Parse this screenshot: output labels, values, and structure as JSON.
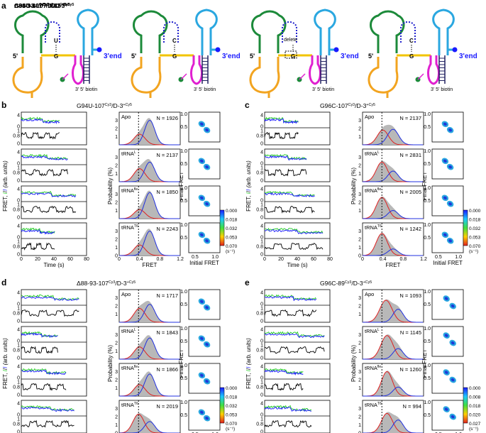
{
  "figure": {
    "panel_a": {
      "letter": "a",
      "constructs": [
        {
          "title_main": "G94U-107",
          "title_sup1": "Cy3",
          "title_mid": "/D-3",
          "title_sup2": "+Cy5",
          "pair_top": "U",
          "pair_bottom": "G",
          "end_label": "3'end",
          "five_prime": "5'",
          "biotin": "3' 5' biotin",
          "note": ""
        },
        {
          "title_main": "G96C-107",
          "title_sup1": "Cy3",
          "title_mid": "/D-3",
          "title_sup2": "+Cy5",
          "pair_top": "C",
          "pair_bottom": "G",
          "end_label": "3'end",
          "five_prime": "5'",
          "biotin": "3' 5' biotin",
          "note": ""
        },
        {
          "title_main": "Δ88-93-107",
          "title_sup1": "Cy3",
          "title_mid": "/D-3",
          "title_sup2": "+Cy5",
          "pair_top": "",
          "pair_bottom": "G",
          "end_label": "3'end",
          "five_prime": "5'",
          "biotin": "3' 5' biotin",
          "note": "delete"
        },
        {
          "title_main": "G96C-89",
          "title_sup1": "Cy3",
          "title_mid": "/D-3",
          "title_sup2": "+Cy5",
          "pair_top": "C",
          "pair_bottom": "G",
          "end_label": "3'end",
          "five_prime": "5'",
          "biotin": "3' 5' biotin",
          "note": ""
        }
      ]
    },
    "panels": [
      {
        "letter": "b",
        "title_main": "G94U-107",
        "title_sup1": "Cy3",
        "title_mid": "/D-3",
        "title_sup2": "+Cy5",
        "rows": [
          {
            "cond": "Apo",
            "cond_sup": "",
            "n_label": "N = 1926"
          },
          {
            "cond": "tRNA",
            "cond_sup": "L",
            "n_label": "N = 2137"
          },
          {
            "cond": "tRNA",
            "cond_sup": "fle",
            "n_label": "N = 1850"
          },
          {
            "cond": "tRNA",
            "cond_sup": "T6",
            "n_label": "N = 2243"
          }
        ]
      },
      {
        "letter": "c",
        "title_main": "G96C-107",
        "title_sup1": "Cy3",
        "title_mid": "/D-3",
        "title_sup2": "+Cy5",
        "rows": [
          {
            "cond": "Apo",
            "cond_sup": "",
            "n_label": "N = 2137"
          },
          {
            "cond": "tRNA",
            "cond_sup": "L",
            "n_label": "N = 2831"
          },
          {
            "cond": "tRNA",
            "cond_sup": "fle",
            "n_label": "N = 2005"
          },
          {
            "cond": "tRNA",
            "cond_sup": "T6",
            "n_label": "N = 1242"
          }
        ]
      },
      {
        "letter": "d",
        "title_main": "Δ88-93-107",
        "title_sup1": "Cy3",
        "title_mid": "/D-3",
        "title_sup2": "+Cy5",
        "rows": [
          {
            "cond": "Apo",
            "cond_sup": "",
            "n_label": "N = 1717"
          },
          {
            "cond": "tRNA",
            "cond_sup": "L",
            "n_label": "N = 1843"
          },
          {
            "cond": "tRNA",
            "cond_sup": "fle",
            "n_label": "N = 1866"
          },
          {
            "cond": "tRNA",
            "cond_sup": "T6",
            "n_label": "N = 2019"
          }
        ]
      },
      {
        "letter": "e",
        "title_main": "G96C-89",
        "title_sup1": "Cy3",
        "title_mid": "/D-3",
        "title_sup2": "+Cy5",
        "rows": [
          {
            "cond": "Apo",
            "cond_sup": "",
            "n_label": "N = 1093"
          },
          {
            "cond": "tRNA",
            "cond_sup": "L",
            "n_label": "N = 1145"
          },
          {
            "cond": "tRNA",
            "cond_sup": "fle",
            "n_label": "N = 1260"
          },
          {
            "cond": "tRNA",
            "cond_sup": "T6",
            "n_label": "N = 994"
          }
        ]
      }
    ],
    "axes": {
      "trace_x_label": "Time (s)",
      "trace_y_label": "FRET, ",
      "trace_y_label_id": "I",
      "trace_y_label_sep": "/",
      "trace_y_label_ia": "I",
      "trace_y_label_units": " (arb. units)",
      "hist_x_label": "FRET",
      "hist_y_label": "Probability (%)",
      "tdp_x_label": "Initial FRET",
      "tdp_y_label": "Final FRET",
      "colorbar_unit": "(s⁻¹)"
    },
    "colorbars": [
      {
        "panel": "b",
        "ticks": [
          "0.000",
          "0.018",
          "0.032",
          "0.053",
          "0.070"
        ]
      },
      {
        "panel": "c",
        "ticks": [
          "0.000",
          "0.018",
          "0.032",
          "0.053",
          "0.070"
        ]
      },
      {
        "panel": "d",
        "ticks": [
          "0.000",
          "0.018",
          "0.032",
          "0.053",
          "0.070"
        ]
      },
      {
        "panel": "e",
        "ticks": [
          "0.000",
          "0.008",
          "0.018",
          "0.020",
          "0.027"
        ]
      }
    ],
    "colors": {
      "donor": "#22cc22",
      "acceptor": "#1a1aff",
      "fret": "#000000",
      "fit_low": "#e02020",
      "fit_high": "#2030e0",
      "hist_fill": "#b8b8b8"
    }
  },
  "chart_data": [
    {
      "panel": "b",
      "type": "area",
      "title": "G94U-107Cy3/D-3+Cy5",
      "xlabel": "FRET",
      "ylabel": "Probability (%)",
      "xlim": [
        0,
        1.2
      ],
      "ylim": [
        0,
        4
      ],
      "xticks": [
        0,
        0.4,
        0.8,
        1.2
      ],
      "yticks": [
        0,
        1,
        2,
        3
      ],
      "threshold": 0.38,
      "series": [
        {
          "cond": "Apo",
          "N": 1926,
          "low": {
            "mu": 0.4,
            "sigma": 0.11,
            "amp": 1.3
          },
          "high": {
            "mu": 0.6,
            "sigma": 0.1,
            "amp": 3.0
          }
        },
        {
          "cond": "tRNAL",
          "N": 2137,
          "low": {
            "mu": 0.4,
            "sigma": 0.11,
            "amp": 1.6
          },
          "high": {
            "mu": 0.6,
            "sigma": 0.1,
            "amp": 2.4
          }
        },
        {
          "cond": "tRNAfle",
          "N": 1850,
          "low": {
            "mu": 0.4,
            "sigma": 0.11,
            "amp": 1.1
          },
          "high": {
            "mu": 0.6,
            "sigma": 0.1,
            "amp": 3.2
          }
        },
        {
          "cond": "tRNAT6",
          "N": 2243,
          "low": {
            "mu": 0.4,
            "sigma": 0.11,
            "amp": 1.3
          },
          "high": {
            "mu": 0.6,
            "sigma": 0.1,
            "amp": 3.0
          }
        }
      ],
      "tdp": {
        "xlabel": "Initial FRET",
        "ylabel": "Final FRET",
        "xlim": [
          0,
          1
        ],
        "ylim": [
          0,
          1
        ],
        "peaks": [
          [
            0.4,
            0.6
          ],
          [
            0.6,
            0.4
          ]
        ],
        "colorbar": {
          "min": 0.0,
          "max": 0.07,
          "ticks": [
            0.0,
            0.018,
            0.032,
            0.053,
            0.07
          ],
          "unit": "s-1"
        }
      }
    },
    {
      "panel": "c",
      "type": "area",
      "title": "G96C-107Cy3/D-3+Cy5",
      "xlabel": "FRET",
      "ylabel": "Probability (%)",
      "xlim": [
        0,
        1.2
      ],
      "ylim": [
        0,
        4
      ],
      "xticks": [
        0,
        0.4,
        0.8,
        1.2
      ],
      "yticks": [
        0,
        1,
        2,
        3
      ],
      "threshold": 0.38,
      "series": [
        {
          "cond": "Apo",
          "N": 2137,
          "low": {
            "mu": 0.4,
            "sigma": 0.11,
            "amp": 1.8
          },
          "high": {
            "mu": 0.6,
            "sigma": 0.11,
            "amp": 1.9
          }
        },
        {
          "cond": "tRNAL",
          "N": 2831,
          "low": {
            "mu": 0.38,
            "sigma": 0.11,
            "amp": 2.4
          },
          "high": {
            "mu": 0.6,
            "sigma": 0.1,
            "amp": 1.3
          }
        },
        {
          "cond": "tRNAfle",
          "N": 2005,
          "low": {
            "mu": 0.38,
            "sigma": 0.11,
            "amp": 2.6
          },
          "high": {
            "mu": 0.6,
            "sigma": 0.1,
            "amp": 1.0
          }
        },
        {
          "cond": "tRNAT6",
          "N": 1242,
          "low": {
            "mu": 0.38,
            "sigma": 0.11,
            "amp": 2.7
          },
          "high": {
            "mu": 0.6,
            "sigma": 0.1,
            "amp": 0.8
          }
        }
      ],
      "tdp": {
        "xlabel": "Initial FRET",
        "ylabel": "Final FRET",
        "xlim": [
          0,
          1
        ],
        "ylim": [
          0,
          1
        ],
        "peaks": [
          [
            0.4,
            0.6
          ],
          [
            0.6,
            0.4
          ]
        ],
        "colorbar": {
          "min": 0.0,
          "max": 0.07,
          "ticks": [
            0.0,
            0.018,
            0.032,
            0.053,
            0.07
          ],
          "unit": "s-1"
        }
      }
    },
    {
      "panel": "d",
      "type": "area",
      "title": "Δ88-93-107Cy3/D-3+Cy5",
      "xlabel": "FRET",
      "ylabel": "Probability (%)",
      "xlim": [
        0,
        1.2
      ],
      "ylim": [
        0,
        4
      ],
      "xticks": [
        0,
        0.4,
        0.8,
        1.2
      ],
      "yticks": [
        0,
        1,
        2,
        3
      ],
      "threshold": 0.38,
      "series": [
        {
          "cond": "Apo",
          "N": 1717,
          "low": {
            "mu": 0.4,
            "sigma": 0.11,
            "amp": 1.7
          },
          "high": {
            "mu": 0.6,
            "sigma": 0.1,
            "amp": 2.2
          }
        },
        {
          "cond": "tRNAL",
          "N": 1843,
          "low": {
            "mu": 0.4,
            "sigma": 0.11,
            "amp": 1.5
          },
          "high": {
            "mu": 0.6,
            "sigma": 0.1,
            "amp": 2.6
          }
        },
        {
          "cond": "tRNAfle",
          "N": 1866,
          "low": {
            "mu": 0.4,
            "sigma": 0.11,
            "amp": 1.4
          },
          "high": {
            "mu": 0.6,
            "sigma": 0.1,
            "amp": 2.7
          }
        },
        {
          "cond": "tRNAT6",
          "N": 2019,
          "low": {
            "mu": 0.38,
            "sigma": 0.11,
            "amp": 2.3
          },
          "high": {
            "mu": 0.6,
            "sigma": 0.1,
            "amp": 1.4
          }
        }
      ],
      "tdp": {
        "xlabel": "Initial FRET",
        "ylabel": "Final FRET",
        "xlim": [
          0,
          1
        ],
        "ylim": [
          0,
          1
        ],
        "peaks": [
          [
            0.4,
            0.6
          ],
          [
            0.6,
            0.4
          ]
        ],
        "colorbar": {
          "min": 0.0,
          "max": 0.07,
          "ticks": [
            0.0,
            0.018,
            0.032,
            0.053,
            0.07
          ],
          "unit": "s-1"
        }
      }
    },
    {
      "panel": "e",
      "type": "area",
      "title": "G96C-89Cy3/D-3+Cy5",
      "xlabel": "FRET",
      "ylabel": "Probability (%)",
      "xlim": [
        0,
        1.2
      ],
      "ylim": [
        0,
        4
      ],
      "xticks": [
        0,
        0.4,
        0.8,
        1.2
      ],
      "yticks": [
        0,
        1,
        2,
        3
      ],
      "threshold": 0.38,
      "series": [
        {
          "cond": "Apo",
          "N": 1093,
          "low": {
            "mu": 0.46,
            "sigma": 0.12,
            "amp": 2.7
          },
          "high": {
            "mu": 0.7,
            "sigma": 0.1,
            "amp": 1.6
          }
        },
        {
          "cond": "tRNAL",
          "N": 1145,
          "low": {
            "mu": 0.48,
            "sigma": 0.12,
            "amp": 2.9
          },
          "high": {
            "mu": 0.7,
            "sigma": 0.1,
            "amp": 1.3
          }
        },
        {
          "cond": "tRNAfle",
          "N": 1260,
          "low": {
            "mu": 0.48,
            "sigma": 0.11,
            "amp": 3.0
          },
          "high": {
            "mu": 0.7,
            "sigma": 0.1,
            "amp": 1.1
          }
        },
        {
          "cond": "tRNAT6",
          "N": 994,
          "low": {
            "mu": 0.48,
            "sigma": 0.11,
            "amp": 2.4
          },
          "high": {
            "mu": 0.7,
            "sigma": 0.1,
            "amp": 1.6
          }
        }
      ],
      "tdp": {
        "xlabel": "Initial FRET",
        "ylabel": "Final FRET",
        "xlim": [
          0,
          1
        ],
        "ylim": [
          0,
          1
        ],
        "peaks": [
          [
            0.45,
            0.7
          ],
          [
            0.7,
            0.45
          ]
        ],
        "colorbar": {
          "min": 0.0,
          "max": 0.027,
          "ticks": [
            0.0,
            0.008,
            0.018,
            0.02,
            0.027
          ],
          "unit": "s-1"
        }
      }
    }
  ]
}
